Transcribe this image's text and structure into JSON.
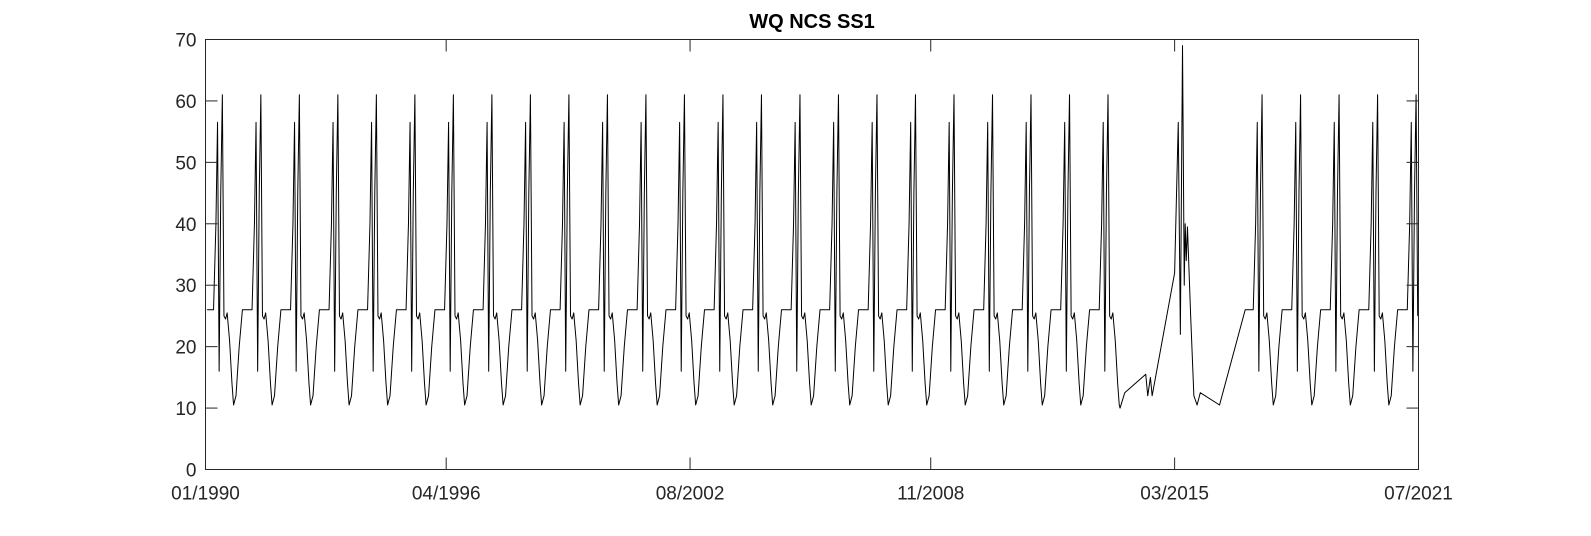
{
  "chart_data": {
    "type": "line",
    "title": "WQ NCS SS1",
    "xlabel": "",
    "ylabel": "",
    "x_range": [
      "01/1990",
      "07/2021"
    ],
    "ylim": [
      0,
      70
    ],
    "grid": false,
    "legend": "none",
    "x_ticks": [
      "01/1990",
      "04/1996",
      "08/2002",
      "11/2008",
      "03/2015",
      "07/2021"
    ],
    "y_ticks": [
      0,
      10,
      20,
      30,
      40,
      50,
      60,
      70
    ],
    "line_color": "#000000",
    "series": [
      {
        "seasonal_template": [
          {
            "month": "Jan",
            "value": 26
          },
          {
            "month": "Mar",
            "value": 26
          },
          {
            "month": "Apr",
            "value": 40
          },
          {
            "month": "Apr",
            "value": 56.5
          },
          {
            "month": "May",
            "value": 16
          },
          {
            "month": "May",
            "value": 45
          },
          {
            "month": "Jun",
            "value": 61
          },
          {
            "month": "Jun",
            "value": 25
          },
          {
            "month": "Jul",
            "value": 24.5
          },
          {
            "month": "Jul",
            "value": 25.5
          },
          {
            "month": "Aug",
            "value": 21
          },
          {
            "month": "Sep",
            "value": 14
          },
          {
            "month": "Sep",
            "value": 10.5
          },
          {
            "month": "Oct",
            "value": 12
          },
          {
            "month": "Nov",
            "value": 20
          },
          {
            "month": "Dec",
            "value": 26
          }
        ],
        "points": [
          {
            "date": "2013-10-01",
            "value": 10
          },
          {
            "date": "2013-11-15",
            "value": 12.5
          },
          {
            "date": "2014-06-01",
            "value": 15.5
          },
          {
            "date": "2014-06-20",
            "value": 12
          },
          {
            "date": "2014-07-15",
            "value": 15
          },
          {
            "date": "2014-08-01",
            "value": 12
          },
          {
            "date": "2015-03-01",
            "value": 32
          },
          {
            "date": "2015-04-05",
            "value": 56.5
          },
          {
            "date": "2015-04-25",
            "value": 22
          },
          {
            "date": "2015-05-15",
            "value": 69
          },
          {
            "date": "2015-06-01",
            "value": 30
          },
          {
            "date": "2015-06-10",
            "value": 40
          },
          {
            "date": "2015-06-20",
            "value": 34
          },
          {
            "date": "2015-07-01",
            "value": 39.5
          },
          {
            "date": "2015-08-01",
            "value": 25
          },
          {
            "date": "2015-09-01",
            "value": 12
          },
          {
            "date": "2015-10-01",
            "value": 10.5
          },
          {
            "date": "2015-11-01",
            "value": 12.5
          },
          {
            "date": "2016-05-01",
            "value": 10.5
          },
          {
            "date": "2017-01-01",
            "value": 26
          }
        ]
      }
    ]
  }
}
